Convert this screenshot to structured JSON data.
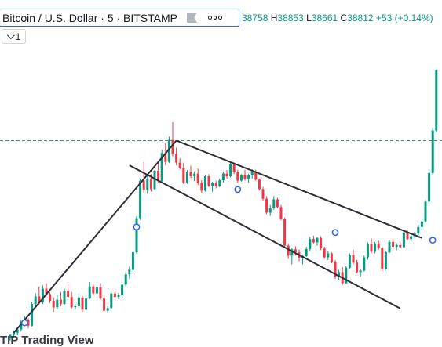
{
  "legend": {
    "symbol": "Bitcoin / U.S. Dollar · 5 · BITSTAMP",
    "o_label": "O",
    "o_value": "38758",
    "h_label": "H",
    "h_value": "38853",
    "l_label": "L",
    "l_value": "38661",
    "c_label": "C",
    "c_value": "38812",
    "change": "+53 (+0.14%)",
    "indicator_count": "1"
  },
  "watermark": "TIP Trading View",
  "colors": {
    "up": "#089981",
    "down": "#f23645",
    "trendline": "#2a2e39",
    "level_line": "#26a269",
    "marker": "#2962ff",
    "accent": "#2962ff"
  },
  "chart_data": {
    "type": "candlestick",
    "title": "Bitcoin / U.S. Dollar · 5 · BITSTAMP",
    "ylim": [
      37900,
      39450
    ],
    "candles": [
      [
        37915,
        37935,
        37905,
        37930
      ],
      [
        37930,
        37950,
        37915,
        37940
      ],
      [
        37940,
        37965,
        37928,
        37955
      ],
      [
        37955,
        38000,
        37945,
        37990
      ],
      [
        37990,
        38015,
        37975,
        38000
      ],
      [
        38000,
        38005,
        37960,
        37972
      ],
      [
        37972,
        38080,
        37968,
        38070
      ],
      [
        38070,
        38120,
        38060,
        38105
      ],
      [
        38105,
        38150,
        38065,
        38080
      ],
      [
        38080,
        38155,
        38070,
        38140
      ],
      [
        38140,
        38165,
        38105,
        38115
      ],
      [
        38115,
        38125,
        38075,
        38085
      ],
      [
        38085,
        38100,
        38035,
        38055
      ],
      [
        38055,
        38110,
        38045,
        38090
      ],
      [
        38090,
        38125,
        38060,
        38070
      ],
      [
        38070,
        38140,
        38065,
        38130
      ],
      [
        38130,
        38160,
        38095,
        38102
      ],
      [
        38102,
        38125,
        38050,
        38055
      ],
      [
        38055,
        38070,
        38045,
        38060
      ],
      [
        38060,
        38115,
        38055,
        38100
      ],
      [
        38100,
        38105,
        38035,
        38045
      ],
      [
        38045,
        38105,
        38040,
        38095
      ],
      [
        38095,
        38170,
        38092,
        38150
      ],
      [
        38150,
        38158,
        38110,
        38118
      ],
      [
        38118,
        38150,
        38110,
        38145
      ],
      [
        38145,
        38165,
        38090,
        38095
      ],
      [
        38095,
        38110,
        38035,
        38040
      ],
      [
        38040,
        38060,
        38030,
        38052
      ],
      [
        38052,
        38125,
        38048,
        38118
      ],
      [
        38118,
        38128,
        38095,
        38103
      ],
      [
        38103,
        38120,
        38092,
        38110
      ],
      [
        38110,
        38165,
        38105,
        38158
      ],
      [
        38158,
        38215,
        38150,
        38205
      ],
      [
        38205,
        38240,
        38185,
        38225
      ],
      [
        38225,
        38310,
        38215,
        38305
      ],
      [
        38305,
        38470,
        38298,
        38460
      ],
      [
        38460,
        38640,
        38452,
        38630
      ],
      [
        38630,
        38715,
        38572,
        38590
      ],
      [
        38590,
        38650,
        38570,
        38640
      ],
      [
        38640,
        38660,
        38580,
        38592
      ],
      [
        38592,
        38680,
        38588,
        38675
      ],
      [
        38675,
        38715,
        38620,
        38628
      ],
      [
        38628,
        38770,
        38622,
        38755
      ],
      [
        38755,
        38800,
        38700,
        38715
      ],
      [
        38715,
        38830,
        38710,
        38815
      ],
      [
        38815,
        38895,
        38740,
        38750
      ],
      [
        38750,
        38780,
        38700,
        38712
      ],
      [
        38712,
        38732,
        38680,
        38688
      ],
      [
        38688,
        38712,
        38614,
        38622
      ],
      [
        38622,
        38678,
        38615,
        38670
      ],
      [
        38670,
        38698,
        38642,
        38650
      ],
      [
        38650,
        38672,
        38628,
        38662
      ],
      [
        38662,
        38685,
        38610,
        38620
      ],
      [
        38620,
        38632,
        38575,
        38585
      ],
      [
        38585,
        38655,
        38580,
        38650
      ],
      [
        38650,
        38660,
        38600,
        38605
      ],
      [
        38605,
        38625,
        38580,
        38618
      ],
      [
        38618,
        38630,
        38595,
        38605
      ],
      [
        38605,
        38640,
        38600,
        38632
      ],
      [
        38632,
        38670,
        38622,
        38662
      ],
      [
        38662,
        38678,
        38640,
        38650
      ],
      [
        38650,
        38712,
        38645,
        38705
      ],
      [
        38705,
        38712,
        38660,
        38668
      ],
      [
        38668,
        38680,
        38622,
        38630
      ],
      [
        38630,
        38660,
        38626,
        38655
      ],
      [
        38655,
        38680,
        38630,
        38638
      ],
      [
        38638,
        38662,
        38620,
        38655
      ],
      [
        38655,
        38682,
        38640,
        38670
      ],
      [
        38670,
        38680,
        38630,
        38635
      ],
      [
        38635,
        38640,
        38585,
        38592
      ],
      [
        38592,
        38602,
        38540,
        38548
      ],
      [
        38548,
        38560,
        38478,
        38485
      ],
      [
        38485,
        38520,
        38470,
        38505
      ],
      [
        38505,
        38560,
        38498,
        38545
      ],
      [
        38545,
        38552,
        38505,
        38510
      ],
      [
        38510,
        38520,
        38450,
        38455
      ],
      [
        38455,
        38462,
        38325,
        38335
      ],
      [
        38335,
        38345,
        38275,
        38290
      ],
      [
        38290,
        38325,
        38250,
        38318
      ],
      [
        38318,
        38332,
        38290,
        38305
      ],
      [
        38305,
        38318,
        38265,
        38280
      ],
      [
        38280,
        38292,
        38250,
        38288
      ],
      [
        38288,
        38330,
        38284,
        38320
      ],
      [
        38320,
        38375,
        38310,
        38365
      ],
      [
        38365,
        38380,
        38345,
        38350
      ],
      [
        38350,
        38375,
        38335,
        38370
      ],
      [
        38370,
        38378,
        38315,
        38322
      ],
      [
        38322,
        38330,
        38275,
        38282
      ],
      [
        38282,
        38312,
        38270,
        38300
      ],
      [
        38300,
        38305,
        38255,
        38262
      ],
      [
        38262,
        38270,
        38185,
        38195
      ],
      [
        38195,
        38225,
        38180,
        38215
      ],
      [
        38215,
        38238,
        38158,
        38165
      ],
      [
        38165,
        38242,
        38160,
        38235
      ],
      [
        38235,
        38300,
        38230,
        38292
      ],
      [
        38292,
        38318,
        38250,
        38258
      ],
      [
        38258,
        38270,
        38210,
        38215
      ],
      [
        38215,
        38228,
        38195,
        38222
      ],
      [
        38222,
        38290,
        38218,
        38282
      ],
      [
        38282,
        38350,
        38272,
        38342
      ],
      [
        38342,
        38368,
        38300,
        38308
      ],
      [
        38308,
        38352,
        38300,
        38345
      ],
      [
        38345,
        38358,
        38318,
        38325
      ],
      [
        38325,
        38330,
        38220,
        38230
      ],
      [
        38230,
        38312,
        38225,
        38305
      ],
      [
        38305,
        38360,
        38300,
        38352
      ],
      [
        38352,
        38368,
        38320,
        38330
      ],
      [
        38330,
        38345,
        38315,
        38338
      ],
      [
        38338,
        38355,
        38325,
        38328
      ],
      [
        38328,
        38400,
        38322,
        38395
      ],
      [
        38395,
        38405,
        38360,
        38365
      ],
      [
        38365,
        38382,
        38352,
        38378
      ],
      [
        38378,
        38398,
        38368,
        38390
      ],
      [
        38390,
        38430,
        38382,
        38420
      ],
      [
        38420,
        38450,
        38408,
        38445
      ],
      [
        38445,
        38542,
        38440,
        38535
      ],
      [
        38535,
        38680,
        38525,
        38665
      ],
      [
        38665,
        38870,
        38655,
        38858
      ],
      [
        38858,
        39135,
        38850,
        39130
      ]
    ],
    "horizontal_line": {
      "value": 38812,
      "style": "dashed"
    },
    "trendlines": [
      {
        "from": [
          1,
          37940
        ],
        "to": [
          46,
          38812
        ]
      },
      {
        "from": [
          46,
          38812
        ],
        "to": [
          114,
          38370
        ]
      },
      {
        "from": [
          33,
          38700
        ],
        "to": [
          108,
          38050
        ]
      }
    ],
    "markers": [
      {
        "index": 4,
        "value": 37985
      },
      {
        "index": 35,
        "value": 38420
      },
      {
        "index": 63,
        "value": 38590
      },
      {
        "index": 90,
        "value": 38395
      },
      {
        "index": 117,
        "value": 38360
      }
    ]
  }
}
